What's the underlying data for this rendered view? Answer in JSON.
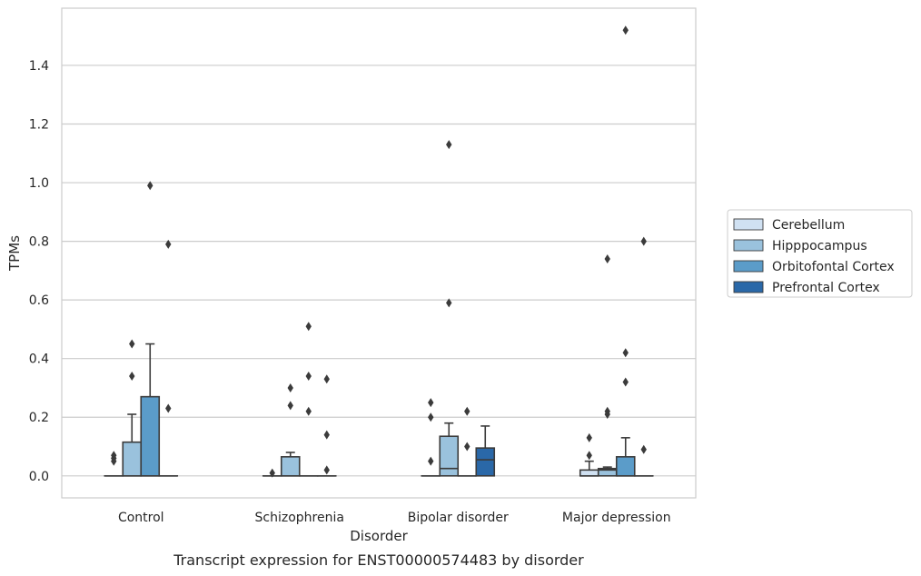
{
  "chart_data": {
    "type": "box",
    "title": "",
    "caption": "Transcript expression for ENST00000574483 by disorder",
    "xlabel": "Disorder",
    "ylabel": "TPMs",
    "ylim": [
      -0.075,
      1.595
    ],
    "yticks": [
      "0.0",
      "0.2",
      "0.4",
      "0.6",
      "0.8",
      "1.0",
      "1.2",
      "1.4"
    ],
    "ytick_values": [
      0.0,
      0.2,
      0.4,
      0.6,
      0.8,
      1.0,
      1.2,
      1.4
    ],
    "grid": "horizontal",
    "legend_position": "right",
    "categories": [
      "Control",
      "Schizophrenia",
      "Bipolar disorder",
      "Major depression"
    ],
    "series": [
      {
        "name": "Cerebellum",
        "color": "#d0e1f2",
        "boxes": [
          {
            "category": "Control",
            "q1": 0.0,
            "median": 0.0,
            "q3": 0.0,
            "whisker_low": 0.0,
            "whisker_high": 0.0,
            "outliers": [
              0.07,
              0.06,
              0.05
            ]
          },
          {
            "category": "Schizophrenia",
            "q1": 0.0,
            "median": 0.0,
            "q3": 0.0,
            "whisker_low": 0.0,
            "whisker_high": 0.0,
            "outliers": [
              0.01
            ]
          },
          {
            "category": "Bipolar disorder",
            "q1": 0.0,
            "median": 0.0,
            "q3": 0.0,
            "whisker_low": 0.0,
            "whisker_high": 0.0,
            "outliers": [
              0.25,
              0.2,
              0.05
            ]
          },
          {
            "category": "Major depression",
            "q1": 0.0,
            "median": 0.0,
            "q3": 0.02,
            "whisker_low": 0.0,
            "whisker_high": 0.05,
            "outliers": [
              0.13,
              0.07
            ]
          }
        ]
      },
      {
        "name": "Hipppocampus",
        "color": "#9ac2dd",
        "boxes": [
          {
            "category": "Control",
            "q1": 0.0,
            "median": 0.0,
            "q3": 0.115,
            "whisker_low": 0.0,
            "whisker_high": 0.21,
            "outliers": [
              0.45,
              0.34
            ]
          },
          {
            "category": "Schizophrenia",
            "q1": 0.0,
            "median": 0.0,
            "q3": 0.065,
            "whisker_low": 0.0,
            "whisker_high": 0.08,
            "outliers": [
              0.3,
              0.24
            ]
          },
          {
            "category": "Bipolar disorder",
            "q1": 0.0,
            "median": 0.025,
            "q3": 0.135,
            "whisker_low": 0.0,
            "whisker_high": 0.18,
            "outliers": [
              0.59,
              1.13
            ]
          },
          {
            "category": "Major depression",
            "q1": 0.0,
            "median": 0.02,
            "q3": 0.025,
            "whisker_low": 0.0,
            "whisker_high": 0.03,
            "outliers": [
              0.74,
              0.22,
              0.21
            ]
          }
        ]
      },
      {
        "name": "Orbitofontal Cortex",
        "color": "#5b9cc9",
        "boxes": [
          {
            "category": "Control",
            "q1": 0.0,
            "median": 0.0,
            "q3": 0.27,
            "whisker_low": 0.0,
            "whisker_high": 0.45,
            "outliers": [
              0.99
            ]
          },
          {
            "category": "Schizophrenia",
            "q1": 0.0,
            "median": 0.0,
            "q3": 0.0,
            "whisker_low": 0.0,
            "whisker_high": 0.0,
            "outliers": [
              0.51,
              0.34,
              0.22
            ]
          },
          {
            "category": "Bipolar disorder",
            "q1": 0.0,
            "median": 0.0,
            "q3": 0.0,
            "whisker_low": 0.0,
            "whisker_high": 0.0,
            "outliers": [
              0.22,
              0.1
            ]
          },
          {
            "category": "Major depression",
            "q1": 0.0,
            "median": 0.0,
            "q3": 0.065,
            "whisker_low": 0.0,
            "whisker_high": 0.13,
            "outliers": [
              1.52,
              0.42,
              0.32
            ]
          }
        ]
      },
      {
        "name": "Prefrontal Cortex",
        "color": "#2a68a8",
        "boxes": [
          {
            "category": "Control",
            "q1": 0.0,
            "median": 0.0,
            "q3": 0.0,
            "whisker_low": 0.0,
            "whisker_high": 0.0,
            "outliers": [
              0.79,
              0.23
            ]
          },
          {
            "category": "Schizophrenia",
            "q1": 0.0,
            "median": 0.0,
            "q3": 0.0,
            "whisker_low": 0.0,
            "whisker_high": 0.0,
            "outliers": [
              0.33,
              0.14,
              0.02
            ]
          },
          {
            "category": "Bipolar disorder",
            "q1": 0.0,
            "median": 0.055,
            "q3": 0.095,
            "whisker_low": 0.0,
            "whisker_high": 0.17,
            "outliers": []
          },
          {
            "category": "Major depression",
            "q1": 0.0,
            "median": 0.0,
            "q3": 0.0,
            "whisker_low": 0.0,
            "whisker_high": 0.0,
            "outliers": [
              0.8,
              0.09
            ]
          }
        ]
      }
    ]
  }
}
